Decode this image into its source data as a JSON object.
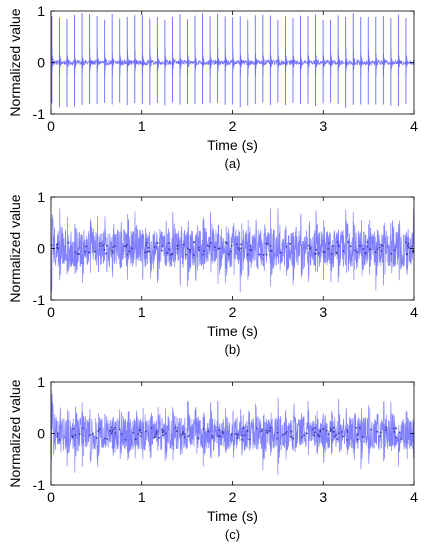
{
  "chart_data": [
    {
      "type": "line",
      "caption": "(a)",
      "xlabel": "Time (s)",
      "ylabel": "Normalized value",
      "xlim": [
        0,
        4
      ],
      "ylim": [
        -1,
        1
      ],
      "xticks": [
        "0",
        "1",
        "2",
        "3",
        "4"
      ],
      "yticks": [
        "-1",
        "0",
        "1"
      ],
      "grid": false,
      "color": "#6b6bff",
      "series": [
        {
          "signal": "impulse train",
          "impulse_count": 48,
          "impulse_interval_s": 0.083,
          "impulse_peak_range": [
            -0.88,
            0.97
          ],
          "background_amplitude": 0.05
        }
      ]
    },
    {
      "type": "line",
      "caption": "(b)",
      "xlabel": "Time (s)",
      "ylabel": "Normalized value",
      "xlim": [
        0,
        4
      ],
      "ylim": [
        -1,
        1
      ],
      "xticks": [
        "0",
        "1",
        "2",
        "3",
        "4"
      ],
      "yticks": [
        "-1",
        "0",
        "1"
      ],
      "grid": false,
      "color": "#6b6bff",
      "series": [
        {
          "signal": "dense burst noise",
          "burst_interval_s": 0.083,
          "peak_amplitude": 0.95,
          "baseline_amplitude": 0.35
        }
      ]
    },
    {
      "type": "line",
      "caption": "(c)",
      "xlabel": "Time (s)",
      "ylabel": "Normalized value",
      "xlim": [
        0,
        4
      ],
      "ylim": [
        -1,
        1
      ],
      "xticks": [
        "0",
        "1",
        "2",
        "3",
        "4"
      ],
      "yticks": [
        "-1",
        "0",
        "1"
      ],
      "grid": false,
      "color": "#6b6bff",
      "series": [
        {
          "signal": "dense burst noise",
          "burst_interval_s": 0.083,
          "peak_amplitude": 0.9,
          "baseline_amplitude": 0.3
        }
      ]
    }
  ]
}
